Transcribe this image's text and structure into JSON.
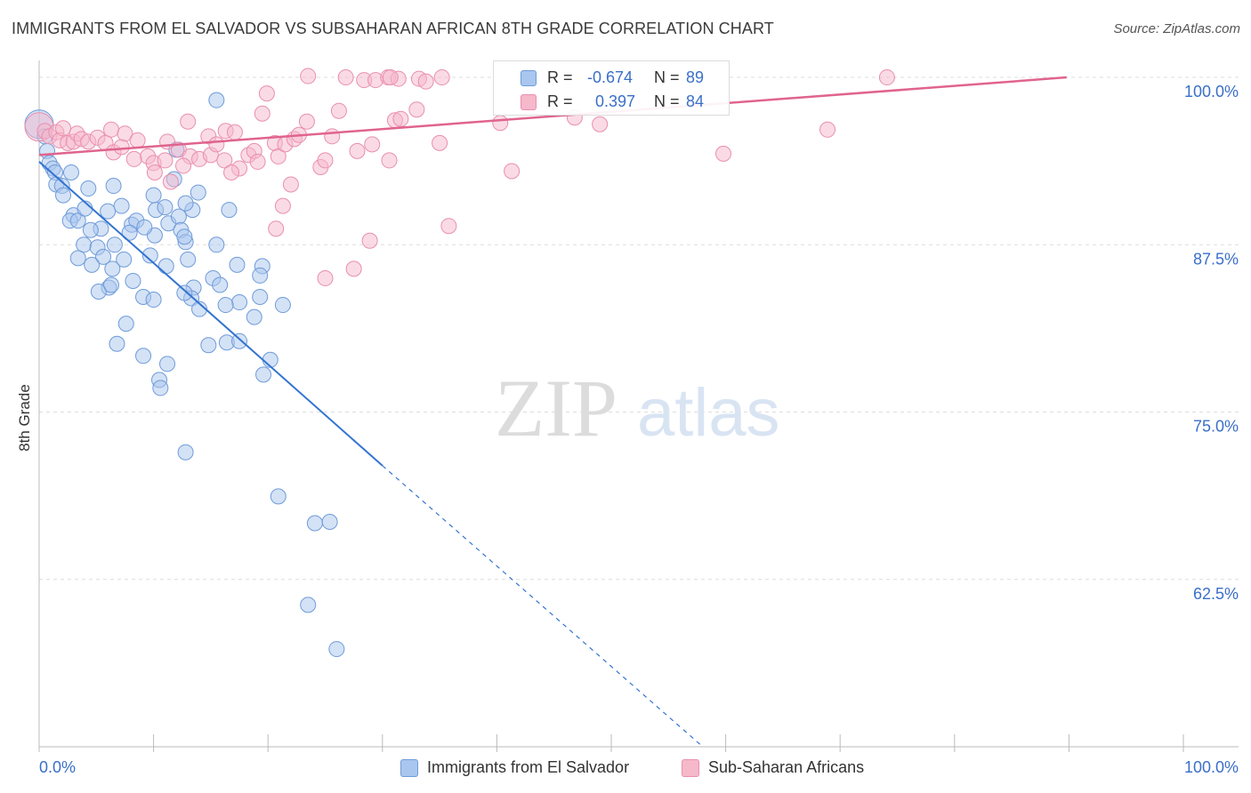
{
  "header": {
    "title": "IMMIGRANTS FROM EL SALVADOR VS SUBSAHARAN AFRICAN 8TH GRADE CORRELATION CHART",
    "source": "Source: ZipAtlas.com"
  },
  "watermark": {
    "part1": "ZIP",
    "part2": "atlas"
  },
  "legend_top": {
    "rows": [
      {
        "r_label": "R =",
        "r_value": "-0.674",
        "n_label": "N =",
        "n_value": "89"
      },
      {
        "r_label": "R =",
        "r_value": "0.397",
        "n_label": "N =",
        "n_value": "84"
      }
    ]
  },
  "legend_bottom": {
    "items": [
      {
        "label": "Immigrants from El Salvador"
      },
      {
        "label": "Sub-Saharan Africans"
      }
    ]
  },
  "colors": {
    "blue_fill": "#a9c6ee",
    "blue_stroke": "#6e9bd9",
    "blue_line": "#3374d0",
    "pink_fill": "#f6b8cb",
    "pink_stroke": "#e98fad",
    "pink_line": "#e0648d",
    "tick_label": "#3a6fc8",
    "grid": "#dddddd"
  },
  "chart_data": {
    "type": "scatter",
    "title": "IMMIGRANTS FROM EL SALVADOR VS SUBSAHARAN AFRICAN 8TH GRADE CORRELATION CHART",
    "xlabel": "",
    "ylabel": "8th Grade",
    "xlim": [
      0,
      100
    ],
    "ylim": [
      50,
      101
    ],
    "x_tick_labels": [
      "0.0%",
      "100.0%"
    ],
    "y_ticks": [
      62.5,
      75.0,
      87.5,
      100.0
    ],
    "y_tick_labels": [
      "62.5%",
      "75.0%",
      "87.5%",
      "100.0%"
    ],
    "grid": true,
    "legend_position": "bottom",
    "series": [
      {
        "name": "Immigrants from El Salvador",
        "color": "#a9c6ee",
        "R": -0.674,
        "N": 89,
        "trend": {
          "x_start": 0,
          "y_start": 93.7,
          "x_solid_end": 30,
          "y_solid_end": 71.0,
          "x_dash_end": 58,
          "y_dash_end": 50.0
        },
        "points": [
          [
            0,
            96.5
          ],
          [
            0.5,
            95.6
          ],
          [
            0.7,
            94.5
          ],
          [
            0.9,
            93.6
          ],
          [
            1.2,
            93.2
          ],
          [
            1.4,
            92.9
          ],
          [
            2.8,
            92.9
          ],
          [
            1.5,
            92.0
          ],
          [
            2.0,
            91.9
          ],
          [
            2.1,
            91.2
          ],
          [
            4.3,
            91.7
          ],
          [
            6.5,
            91.9
          ],
          [
            10.0,
            91.2
          ],
          [
            13.9,
            91.4
          ],
          [
            3.0,
            89.7
          ],
          [
            2.7,
            89.3
          ],
          [
            3.4,
            89.3
          ],
          [
            4.0,
            90.2
          ],
          [
            6.0,
            90.0
          ],
          [
            7.2,
            90.4
          ],
          [
            10.2,
            90.1
          ],
          [
            11.0,
            90.3
          ],
          [
            13.4,
            90.1
          ],
          [
            16.6,
            90.1
          ],
          [
            11.3,
            89.1
          ],
          [
            12.2,
            89.6
          ],
          [
            8.1,
            89.0
          ],
          [
            8.5,
            89.3
          ],
          [
            5.4,
            88.7
          ],
          [
            4.5,
            88.6
          ],
          [
            7.9,
            88.4
          ],
          [
            10.1,
            88.2
          ],
          [
            12.4,
            88.6
          ],
          [
            3.9,
            87.5
          ],
          [
            5.1,
            87.3
          ],
          [
            6.6,
            87.5
          ],
          [
            12.8,
            87.7
          ],
          [
            15.5,
            87.5
          ],
          [
            3.4,
            86.5
          ],
          [
            5.6,
            86.6
          ],
          [
            9.7,
            86.7
          ],
          [
            7.4,
            86.4
          ],
          [
            13.0,
            86.4
          ],
          [
            4.6,
            86.0
          ],
          [
            11.1,
            85.9
          ],
          [
            17.3,
            86.0
          ],
          [
            19.5,
            85.9
          ],
          [
            6.4,
            85.7
          ],
          [
            8.2,
            84.8
          ],
          [
            13.5,
            84.3
          ],
          [
            6.1,
            84.3
          ],
          [
            5.2,
            84.0
          ],
          [
            15.2,
            85.0
          ],
          [
            19.3,
            85.2
          ],
          [
            13.3,
            83.5
          ],
          [
            9.1,
            83.6
          ],
          [
            17.5,
            83.2
          ],
          [
            16.3,
            83.0
          ],
          [
            19.3,
            83.6
          ],
          [
            10.0,
            83.4
          ],
          [
            21.3,
            83.0
          ],
          [
            18.8,
            82.1
          ],
          [
            7.6,
            81.6
          ],
          [
            6.8,
            80.1
          ],
          [
            14.8,
            80.0
          ],
          [
            16.4,
            80.2
          ],
          [
            17.5,
            80.3
          ],
          [
            9.1,
            79.2
          ],
          [
            11.2,
            78.6
          ],
          [
            20.2,
            78.9
          ],
          [
            19.6,
            77.8
          ],
          [
            10.5,
            77.4
          ],
          [
            10.6,
            76.8
          ],
          [
            15.5,
            98.3
          ],
          [
            12.0,
            94.6
          ],
          [
            11.8,
            92.4
          ],
          [
            12.8,
            90.6
          ],
          [
            12.7,
            88.1
          ],
          [
            9.2,
            88.8
          ],
          [
            6.3,
            84.5
          ],
          [
            15.8,
            84.5
          ],
          [
            12.7,
            83.9
          ],
          [
            14.0,
            82.7
          ],
          [
            12.8,
            72.0
          ],
          [
            20.9,
            68.7
          ],
          [
            24.1,
            66.7
          ],
          [
            25.4,
            66.8
          ],
          [
            23.5,
            60.6
          ],
          [
            26.0,
            57.3
          ]
        ]
      },
      {
        "name": "Sub-Saharan Africans",
        "color": "#f6b8cb",
        "R": 0.397,
        "N": 84,
        "trend": {
          "x_start": 0,
          "y_start": 94.2,
          "x_end": 89.8,
          "y_end": 100.0
        },
        "points": [
          [
            0,
            96.3
          ],
          [
            0.5,
            96.0
          ],
          [
            0.9,
            95.6
          ],
          [
            1.5,
            95.9
          ],
          [
            1.8,
            95.3
          ],
          [
            2.1,
            96.2
          ],
          [
            2.5,
            95.1
          ],
          [
            3.0,
            95.2
          ],
          [
            3.3,
            95.8
          ],
          [
            3.7,
            95.4
          ],
          [
            4.3,
            95.2
          ],
          [
            5.1,
            95.5
          ],
          [
            5.8,
            95.1
          ],
          [
            6.5,
            94.4
          ],
          [
            7.2,
            94.8
          ],
          [
            6.3,
            96.1
          ],
          [
            7.5,
            95.8
          ],
          [
            8.3,
            93.9
          ],
          [
            8.6,
            95.3
          ],
          [
            9.5,
            94.1
          ],
          [
            10.0,
            93.6
          ],
          [
            10.1,
            92.9
          ],
          [
            11.0,
            93.8
          ],
          [
            11.2,
            95.2
          ],
          [
            12.2,
            94.6
          ],
          [
            13.2,
            94.1
          ],
          [
            14.0,
            93.9
          ],
          [
            15.0,
            94.2
          ],
          [
            14.8,
            95.6
          ],
          [
            15.5,
            95.0
          ],
          [
            16.2,
            93.8
          ],
          [
            16.3,
            96.0
          ],
          [
            17.5,
            93.2
          ],
          [
            18.3,
            94.2
          ],
          [
            18.8,
            94.5
          ],
          [
            19.1,
            93.7
          ],
          [
            17.1,
            95.9
          ],
          [
            13.0,
            96.7
          ],
          [
            12.6,
            93.4
          ],
          [
            11.5,
            92.2
          ],
          [
            16.8,
            92.9
          ],
          [
            20.6,
            95.1
          ],
          [
            20.9,
            94.1
          ],
          [
            21.5,
            95.0
          ],
          [
            22.0,
            92.0
          ],
          [
            22.3,
            95.4
          ],
          [
            22.7,
            95.7
          ],
          [
            23.4,
            96.7
          ],
          [
            24.6,
            93.3
          ],
          [
            25.0,
            93.8
          ],
          [
            25.6,
            95.6
          ],
          [
            26.2,
            97.5
          ],
          [
            27.8,
            94.5
          ],
          [
            29.1,
            95.0
          ],
          [
            30.6,
            93.8
          ],
          [
            31.1,
            96.8
          ],
          [
            31.6,
            96.9
          ],
          [
            33.0,
            97.6
          ],
          [
            35.0,
            95.1
          ],
          [
            35.8,
            88.9
          ],
          [
            20.7,
            88.7
          ],
          [
            19.5,
            97.3
          ],
          [
            19.9,
            98.8
          ],
          [
            21.3,
            90.4
          ],
          [
            28.4,
            99.8
          ],
          [
            29.4,
            99.8
          ],
          [
            30.5,
            100.0
          ],
          [
            31.4,
            99.9
          ],
          [
            33.2,
            99.9
          ],
          [
            33.8,
            99.7
          ],
          [
            35.2,
            100.0
          ],
          [
            23.5,
            100.1
          ],
          [
            26.8,
            100.0
          ],
          [
            27.5,
            85.7
          ],
          [
            28.9,
            87.8
          ],
          [
            30.7,
            100.0
          ],
          [
            25.0,
            85.0
          ],
          [
            40.3,
            96.6
          ],
          [
            41.3,
            93.0
          ],
          [
            46.8,
            97.0
          ],
          [
            49.0,
            96.5
          ],
          [
            59.8,
            94.3
          ],
          [
            68.9,
            96.1
          ],
          [
            74.1,
            100.0
          ]
        ]
      }
    ]
  }
}
